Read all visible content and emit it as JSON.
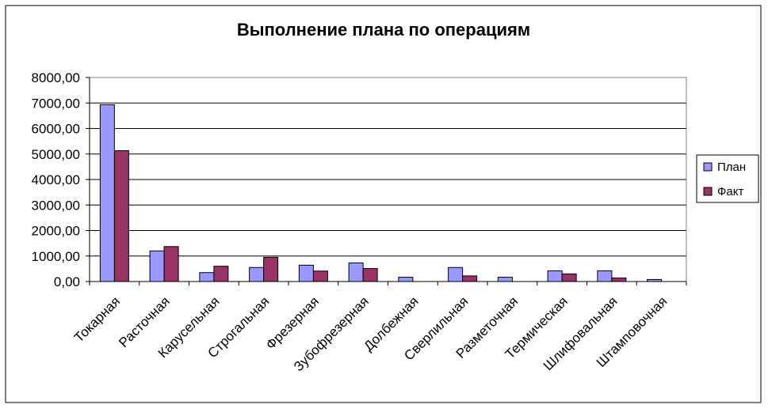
{
  "chart_data": {
    "type": "bar",
    "title": "Выполнение плана по операциям",
    "categories": [
      "Токарная",
      "Расточная",
      "Карусельная",
      "Строгальная",
      "Фрезерная",
      "Зубофрезерная",
      "Долбежная",
      "Сверлильная",
      "Разметочная",
      "Термическая",
      "Шлифовальная",
      "Штамповочная"
    ],
    "series": [
      {
        "name": "План",
        "values": [
          6930,
          1200,
          350,
          550,
          640,
          730,
          170,
          550,
          170,
          420,
          420,
          80
        ]
      },
      {
        "name": "Факт",
        "values": [
          5130,
          1370,
          600,
          950,
          410,
          510,
          0,
          220,
          0,
          300,
          140,
          0
        ]
      }
    ],
    "ylim": [
      0,
      8000
    ],
    "y_ticks": [
      "0,00",
      "1000,00",
      "2000,00",
      "3000,00",
      "4000,00",
      "5000,00",
      "6000,00",
      "7000,00",
      "8000,00"
    ],
    "xlabel": "",
    "ylabel": "",
    "grid": true,
    "legend_position": "right",
    "colors": {
      "plan": "#9999ff",
      "fact": "#993366",
      "gridline": "#000000",
      "plot_border": "#808080"
    }
  }
}
